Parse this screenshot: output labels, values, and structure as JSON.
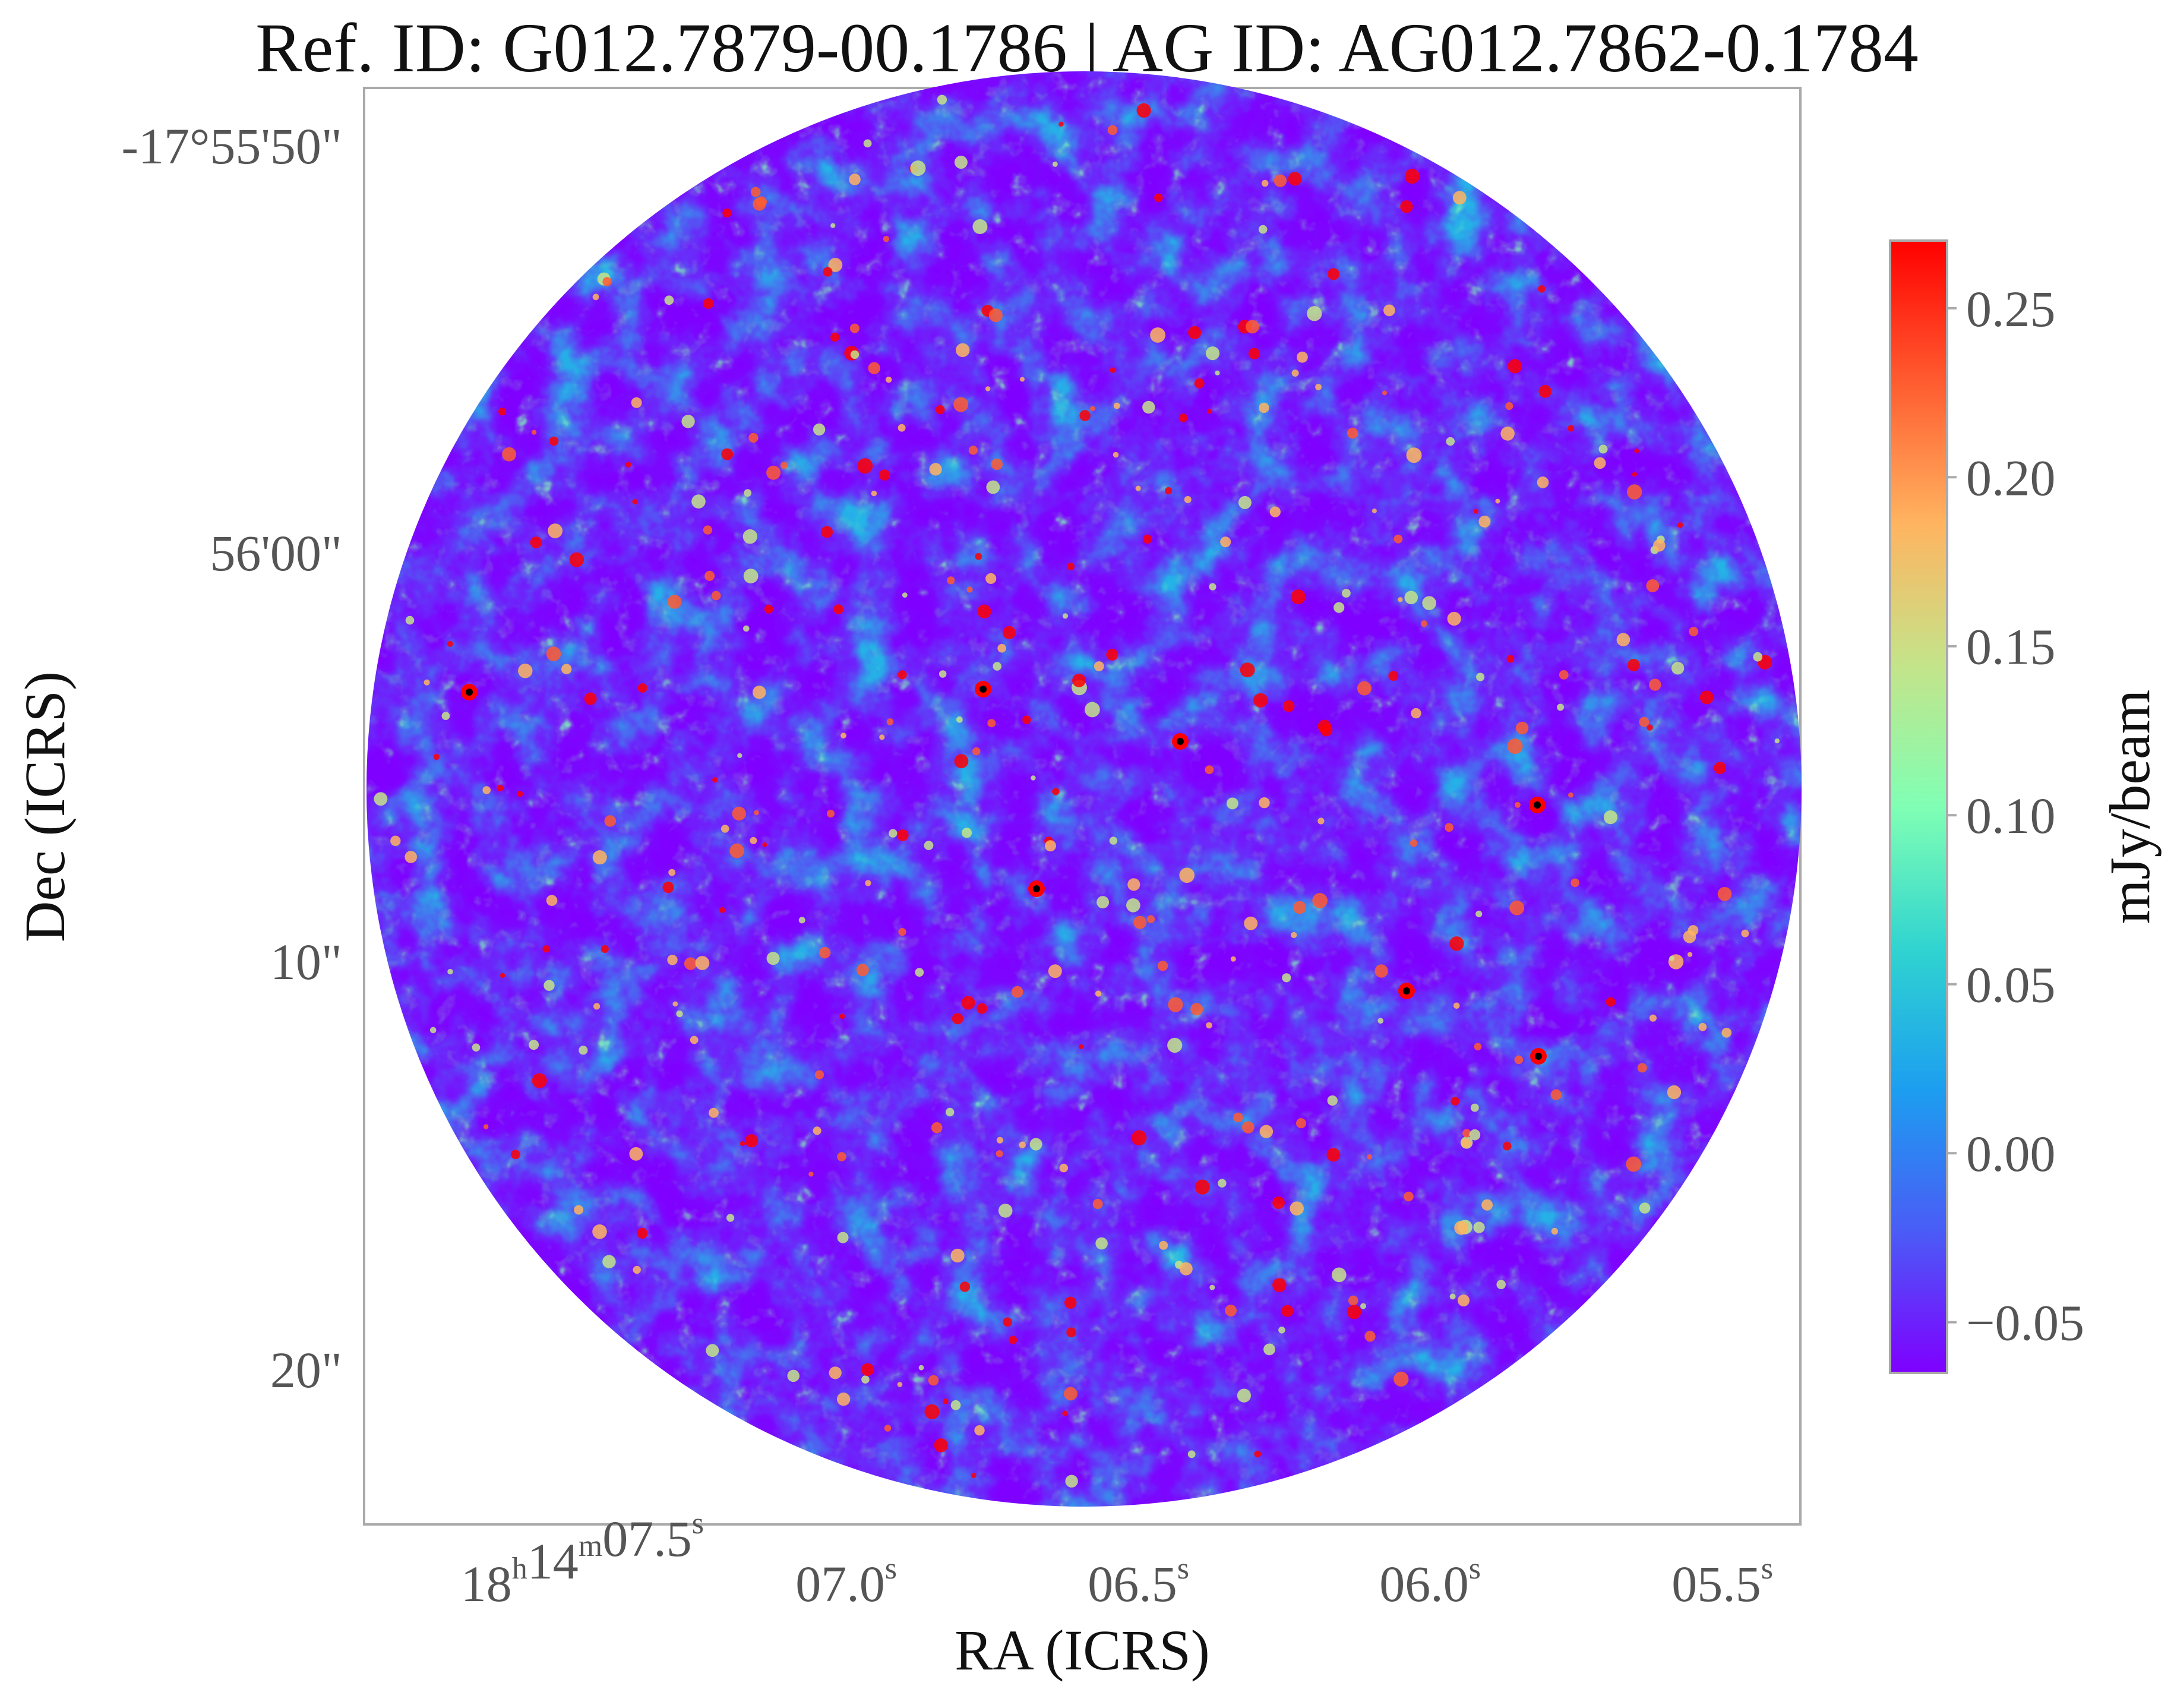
{
  "title": "Ref. ID: G012.7879-00.1786 | AG ID: AG012.7862-0.1784",
  "chart_data": {
    "type": "heatmap",
    "title": "Ref. ID: G012.7879-00.1786 | AG ID: AG012.7862-0.1784",
    "xlabel": "RA (ICRS)",
    "ylabel": "Dec (ICRS)",
    "colorbar_label": "mJy/beam",
    "colormap": "rainbow",
    "value_range": [
      -0.065,
      0.27
    ],
    "colorbar_ticks": [
      "0.25",
      "0.20",
      "0.15",
      "0.10",
      "0.05",
      "0.00",
      "−0.05"
    ],
    "colorbar_tick_values": [
      0.25,
      0.2,
      0.15,
      0.1,
      0.05,
      0.0,
      -0.05
    ],
    "x_ticks": [
      {
        "prefix": "18",
        "h": "h",
        "mid": "14",
        "m": "m",
        "main": "07.5",
        "s": "s"
      },
      {
        "prefix": "",
        "h": "",
        "mid": "",
        "m": "",
        "main": "07.0",
        "s": "s"
      },
      {
        "prefix": "",
        "h": "",
        "mid": "",
        "m": "",
        "main": "06.5",
        "s": "s"
      },
      {
        "prefix": "",
        "h": "",
        "mid": "",
        "m": "",
        "main": "06.0",
        "s": "s"
      },
      {
        "prefix": "",
        "h": "",
        "mid": "",
        "m": "",
        "main": "05.5",
        "s": "s"
      }
    ],
    "y_ticks": [
      "-17°55'50\"",
      "56'00\"",
      "10\"",
      "20\""
    ],
    "colors": {
      "frame": "#aaaaaa",
      "rainbow_stops": [
        "#7f00ff",
        "#4a5cf6",
        "#1c9ef0",
        "#30d4d0",
        "#80ffb4",
        "#c4e48a",
        "#ffb460",
        "#ff5c30",
        "#ff0000"
      ]
    }
  }
}
